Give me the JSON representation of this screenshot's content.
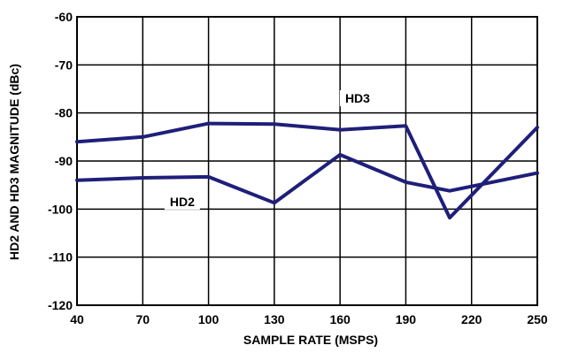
{
  "chart_data": {
    "type": "line",
    "title": "",
    "xlabel": "SAMPLE RATE (MSPS)",
    "ylabel": "HD2 AND HD3 MAGNITUDE (dBc)",
    "x_ticks": [
      "40",
      "70",
      "100",
      "130",
      "160",
      "190",
      "220",
      "250"
    ],
    "x_tick_values": [
      40,
      70,
      100,
      130,
      160,
      190,
      220,
      250
    ],
    "y_ticks": [
      "-60",
      "-70",
      "-80",
      "-90",
      "-100",
      "-110",
      "-120"
    ],
    "y_tick_values": [
      -60,
      -70,
      -80,
      -90,
      -100,
      -110,
      -120
    ],
    "xlim": [
      40,
      250
    ],
    "ylim": [
      -120,
      -60
    ],
    "grid": true,
    "line_color": "#1f1f7a",
    "series": [
      {
        "name": "HD3",
        "x": [
          40,
          70,
          100,
          130,
          160,
          190,
          210,
          250
        ],
        "y": [
          -86,
          -85,
          -82.2,
          -82.3,
          -83.5,
          -82.7,
          -101.8,
          -83
        ]
      },
      {
        "name": "HD2",
        "x": [
          40,
          70,
          100,
          130,
          160,
          190,
          210,
          250
        ],
        "y": [
          -94,
          -93.5,
          -93.3,
          -98.7,
          -88.7,
          -94.4,
          -96.2,
          -92.5
        ]
      }
    ],
    "annotations": [
      {
        "text": "HD3",
        "series": "HD3",
        "x": 168,
        "y": -77.5
      },
      {
        "text": "HD2",
        "series": "HD2",
        "x": 88,
        "y": -99
      }
    ]
  }
}
